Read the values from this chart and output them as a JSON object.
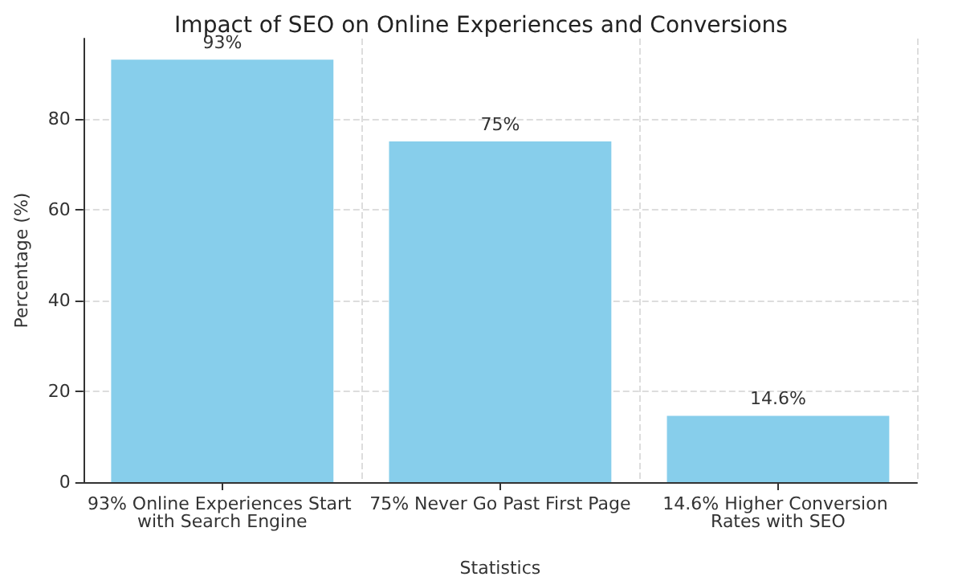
{
  "chart_data": {
    "type": "bar",
    "title": "Impact of SEO on Online Experiences and Conversions",
    "xlabel": "Statistics",
    "ylabel": "Percentage (%)",
    "categories": [
      "93% Online Experiences Start with Search Engine",
      "75% Never Go Past First Page",
      "14.6% Higher Conversion Rates with SEO"
    ],
    "values": [
      93,
      75,
      14.6
    ],
    "color": "#87ceeb",
    "value_labels": [
      "93%",
      "75%",
      "14.6%"
    ],
    "ylim": [
      0,
      97.65
    ],
    "yticks": [
      0,
      20,
      40,
      60,
      80
    ],
    "grid": true
  }
}
